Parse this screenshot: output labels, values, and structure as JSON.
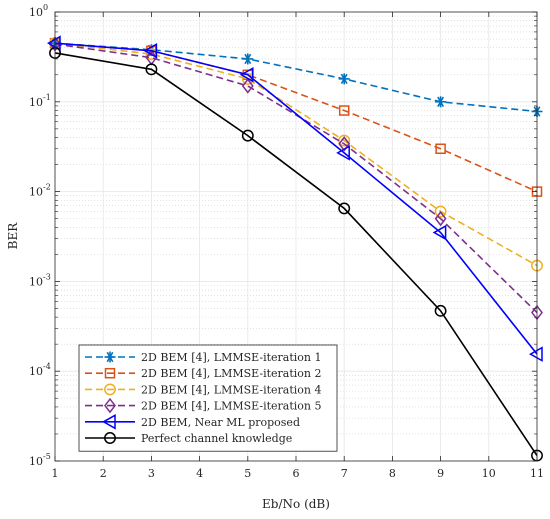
{
  "chart_data": {
    "type": "line",
    "xlabel": "Eb/No (dB)",
    "ylabel": "BER",
    "xlim": [
      1,
      11
    ],
    "ylim": [
      1e-05,
      1
    ],
    "yscale": "log",
    "grid": true,
    "legend_position": "bottom-left",
    "x_ticks": [
      "1",
      "2",
      "3",
      "4",
      "5",
      "6",
      "7",
      "8",
      "9",
      "10",
      "11"
    ],
    "y_ticks": [
      {
        "base": "10",
        "exp": "0"
      },
      {
        "base": "10",
        "exp": "-1"
      },
      {
        "base": "10",
        "exp": "-2"
      },
      {
        "base": "10",
        "exp": "-3"
      },
      {
        "base": "10",
        "exp": "-4"
      },
      {
        "base": "10",
        "exp": "-5"
      }
    ],
    "series": [
      {
        "name": "2D BEM [4], LMMSE-iteration 1",
        "color": "#0072BD",
        "dash": "dash",
        "marker": "asterisk",
        "x": [
          1,
          3,
          5,
          7,
          9,
          11
        ],
        "y": [
          0.45,
          0.38,
          0.3,
          0.18,
          0.1,
          0.078
        ]
      },
      {
        "name": "2D BEM [4], LMMSE-iteration 2",
        "color": "#D95319",
        "dash": "dash",
        "marker": "square",
        "x": [
          1,
          3,
          5,
          7,
          9,
          11
        ],
        "y": [
          0.45,
          0.37,
          0.2,
          0.08,
          0.03,
          0.01
        ]
      },
      {
        "name": "2D BEM [4], LMMSE-iteration 4",
        "color": "#EDB120",
        "dash": "dash",
        "marker": "circle",
        "x": [
          1,
          3,
          5,
          7,
          9,
          11
        ],
        "y": [
          0.45,
          0.34,
          0.18,
          0.037,
          0.006,
          0.0015
        ]
      },
      {
        "name": "2D BEM [4], LMMSE-iteration 5",
        "color": "#7E2F8E",
        "dash": "dash",
        "marker": "diamond",
        "x": [
          1,
          3,
          5,
          7,
          9,
          11
        ],
        "y": [
          0.44,
          0.31,
          0.15,
          0.034,
          0.005,
          0.00045
        ]
      },
      {
        "name": "2D BEM, Near ML proposed",
        "color": "#0000FF",
        "dash": "solid",
        "marker": "triangle-left",
        "x": [
          1,
          3,
          5,
          7,
          9,
          11
        ],
        "y": [
          0.45,
          0.37,
          0.2,
          0.027,
          0.0035,
          0.000155
        ]
      },
      {
        "name": "Perfect channel knowledge",
        "color": "#000000",
        "dash": "solid",
        "marker": "circle",
        "x": [
          1,
          3,
          5,
          7,
          9,
          11
        ],
        "y": [
          0.35,
          0.23,
          0.042,
          0.0065,
          0.00047,
          1.15e-05
        ]
      }
    ]
  }
}
